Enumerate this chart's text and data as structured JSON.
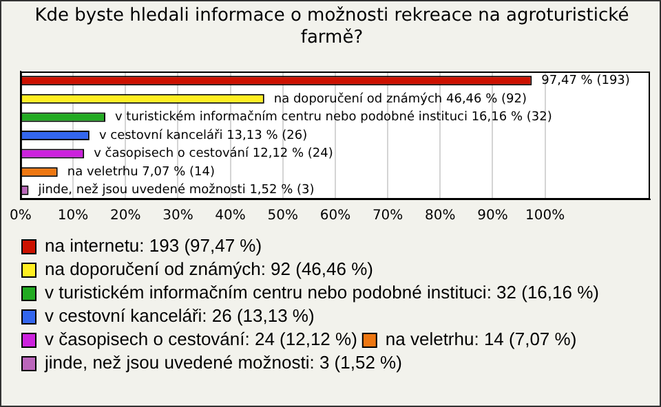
{
  "chart_data": {
    "type": "bar",
    "orientation": "horizontal",
    "title": "Kde byste hledali informace o možnosti rekreace na agroturistické farmě?",
    "categories": [
      null
    ],
    "series": [
      {
        "name": "na internetu: 193 (97,47 %)",
        "color": "#cc1100",
        "values": [
          97.47
        ],
        "value_labels": [
          "97,47 % (193)"
        ]
      },
      {
        "name": "na doporučení od známých: 92 (46,46 %)",
        "color": "#ffee22",
        "values": [
          46.46
        ],
        "value_labels": [
          "na doporučení od známých 46,46 % (92)"
        ]
      },
      {
        "name": "v turistickém informačním centru nebo podobné instituci: 32 (16,16 %)",
        "color": "#22aa22",
        "values": [
          16.16
        ],
        "value_labels": [
          "v turistickém informačním centru nebo podobné instituci 16,16 % (32)"
        ]
      },
      {
        "name": "v cestovní kanceláři: 26 (13,13 %)",
        "color": "#3366ee",
        "values": [
          13.13
        ],
        "value_labels": [
          "v cestovní kanceláři 13,13 % (26)"
        ]
      },
      {
        "name": "v časopisech o cestování: 24 (12,12 %)",
        "color": "#cc22dd",
        "values": [
          12.12
        ],
        "value_labels": [
          "v časopisech o cestování 12,12 % (24)"
        ]
      },
      {
        "name": "na veletrhu: 14 (7,07 %)",
        "color": "#ee7711",
        "values": [
          7.07
        ],
        "value_labels": [
          "na veletrhu 7,07 % (14)"
        ]
      },
      {
        "name": "jinde, než jsou uvedené možnosti: 3 (1,52 %)",
        "color": "#bb66bb",
        "values": [
          1.52
        ],
        "value_labels": [
          "jinde, než jsou uvedené možnosti 1,52 % (3)"
        ]
      }
    ],
    "xlim": [
      0,
      120
    ],
    "xticks": [
      {
        "value": 0,
        "label": "0%"
      },
      {
        "value": 10,
        "label": "10%"
      },
      {
        "value": 20,
        "label": "20%"
      },
      {
        "value": 30,
        "label": "30%"
      },
      {
        "value": 40,
        "label": "40%"
      },
      {
        "value": 50,
        "label": "50%"
      },
      {
        "value": 60,
        "label": "60%"
      },
      {
        "value": 70,
        "label": "70%"
      },
      {
        "value": 80,
        "label": "80%"
      },
      {
        "value": 90,
        "label": "90%"
      },
      {
        "value": 100,
        "label": "100%"
      }
    ],
    "grid": "x",
    "legend": "bottom",
    "tick_labels": "x"
  }
}
